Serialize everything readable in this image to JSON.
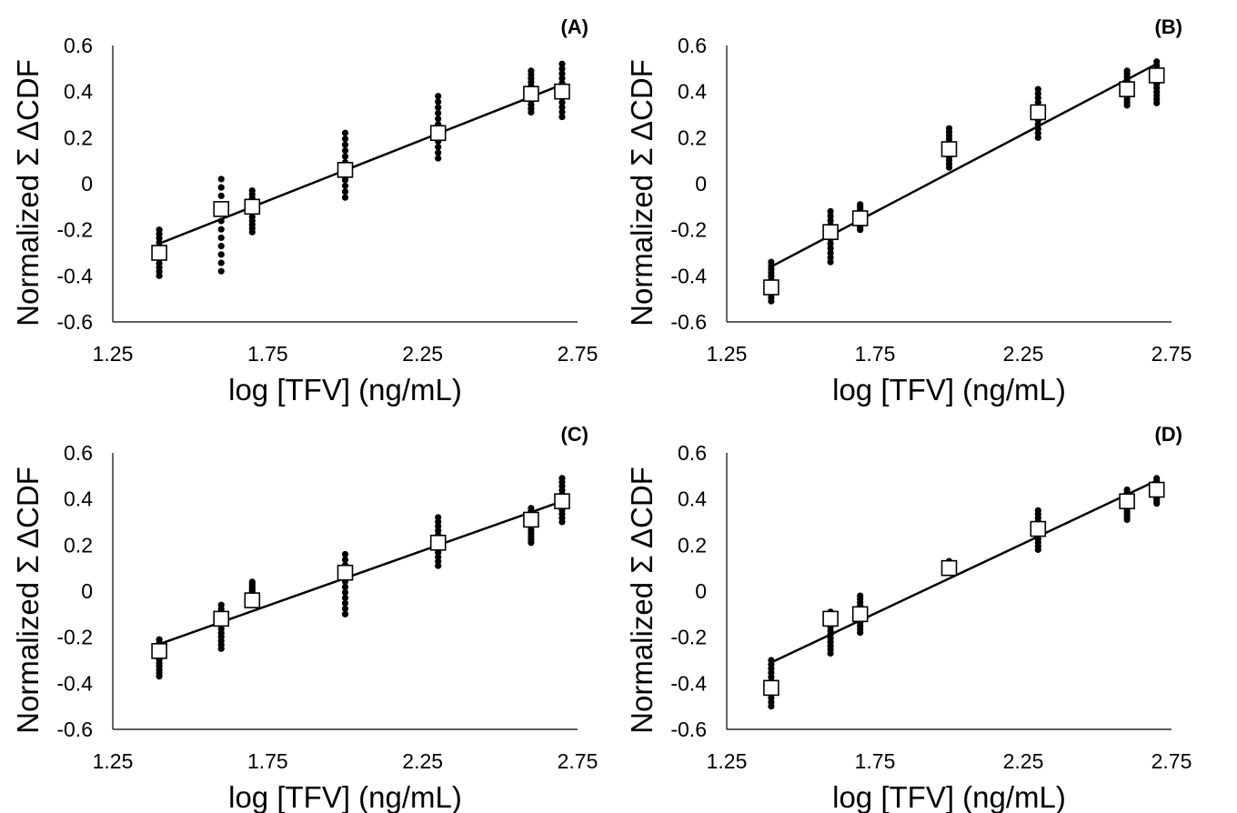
{
  "colors": {
    "points": "#000000",
    "mean_marker_fill": "#ffffff",
    "fit_line": "#000000"
  },
  "chart_data": [
    {
      "type": "scatter",
      "panel": "(A)",
      "xlabel": "log [TFV] (ng/mL)",
      "ylabel": "Normalized Σ ΔCDF",
      "xlim": [
        1.25,
        2.75
      ],
      "ylim": [
        -0.6,
        0.6
      ],
      "xticks": [
        "1.25",
        "1.75",
        "2.25",
        "2.75"
      ],
      "yticks": [
        "-0.6",
        "-0.4",
        "-0.2",
        "0",
        "0.2",
        "0.4",
        "0.6"
      ],
      "grid": false,
      "x": [
        1.4,
        1.6,
        1.7,
        2.0,
        2.3,
        2.6,
        2.7
      ],
      "mean": [
        -0.3,
        -0.11,
        -0.1,
        0.06,
        0.22,
        0.39,
        0.4
      ],
      "replicate_range": [
        [
          -0.4,
          -0.2
        ],
        [
          -0.38,
          0.02
        ],
        [
          -0.21,
          -0.03
        ],
        [
          -0.06,
          0.22
        ],
        [
          0.11,
          0.38
        ],
        [
          0.31,
          0.49
        ],
        [
          0.29,
          0.52
        ]
      ],
      "fit_line": {
        "x": [
          1.4,
          2.7
        ],
        "y": [
          -0.26,
          0.43
        ]
      }
    },
    {
      "type": "scatter",
      "panel": "(B)",
      "xlabel": "log [TFV] (ng/mL)",
      "ylabel": "Normalized Σ ΔCDF",
      "xlim": [
        1.25,
        2.75
      ],
      "ylim": [
        -0.6,
        0.6
      ],
      "xticks": [
        "1.25",
        "1.75",
        "2.25",
        "2.75"
      ],
      "yticks": [
        "-0.6",
        "-0.4",
        "-0.2",
        "0",
        "0.2",
        "0.4",
        "0.6"
      ],
      "grid": false,
      "x": [
        1.4,
        1.6,
        1.7,
        2.0,
        2.3,
        2.6,
        2.7
      ],
      "mean": [
        -0.45,
        -0.21,
        -0.15,
        0.15,
        0.31,
        0.41,
        0.47
      ],
      "replicate_range": [
        [
          -0.51,
          -0.34
        ],
        [
          -0.34,
          -0.12
        ],
        [
          -0.2,
          -0.09
        ],
        [
          0.07,
          0.24
        ],
        [
          0.2,
          0.41
        ],
        [
          0.34,
          0.49
        ],
        [
          0.35,
          0.53
        ]
      ],
      "fit_line": {
        "x": [
          1.4,
          2.7
        ],
        "y": [
          -0.36,
          0.52
        ]
      }
    },
    {
      "type": "scatter",
      "panel": "(C)",
      "xlabel": "log [TFV] (ng/mL)",
      "ylabel": "Normalized Σ ΔCDF",
      "xlim": [
        1.25,
        2.75
      ],
      "ylim": [
        -0.6,
        0.6
      ],
      "xticks": [
        "1.25",
        "1.75",
        "2.25",
        "2.75"
      ],
      "yticks": [
        "-0.6",
        "-0.4",
        "-0.2",
        "0",
        "0.2",
        "0.4",
        "0.6"
      ],
      "grid": false,
      "x": [
        1.4,
        1.6,
        1.7,
        2.0,
        2.3,
        2.6,
        2.7
      ],
      "mean": [
        -0.26,
        -0.12,
        -0.04,
        0.08,
        0.21,
        0.31,
        0.39
      ],
      "replicate_range": [
        [
          -0.37,
          -0.21
        ],
        [
          -0.25,
          -0.06
        ],
        [
          -0.05,
          0.04
        ],
        [
          -0.1,
          0.16
        ],
        [
          0.11,
          0.32
        ],
        [
          0.21,
          0.36
        ],
        [
          0.3,
          0.49
        ]
      ],
      "fit_line": {
        "x": [
          1.4,
          2.7
        ],
        "y": [
          -0.23,
          0.39
        ]
      }
    },
    {
      "type": "scatter",
      "panel": "(D)",
      "xlabel": "log [TFV] (ng/mL)",
      "ylabel": "Normalized Σ ΔCDF",
      "xlim": [
        1.25,
        2.75
      ],
      "ylim": [
        -0.6,
        0.6
      ],
      "xticks": [
        "1.25",
        "1.75",
        "2.25",
        "2.75"
      ],
      "yticks": [
        "-0.6",
        "-0.4",
        "-0.2",
        "0",
        "0.2",
        "0.4",
        "0.6"
      ],
      "grid": false,
      "x": [
        1.4,
        1.6,
        1.7,
        2.0,
        2.3,
        2.6,
        2.7
      ],
      "mean": [
        -0.42,
        -0.12,
        -0.1,
        0.1,
        0.27,
        0.39,
        0.44
      ],
      "replicate_range": [
        [
          -0.5,
          -0.3
        ],
        [
          -0.27,
          -0.09
        ],
        [
          -0.18,
          -0.02
        ],
        [
          0.08,
          0.13
        ],
        [
          0.18,
          0.35
        ],
        [
          0.31,
          0.44
        ],
        [
          0.38,
          0.49
        ]
      ],
      "fit_line": {
        "x": [
          1.4,
          2.7
        ],
        "y": [
          -0.31,
          0.48
        ]
      }
    }
  ]
}
